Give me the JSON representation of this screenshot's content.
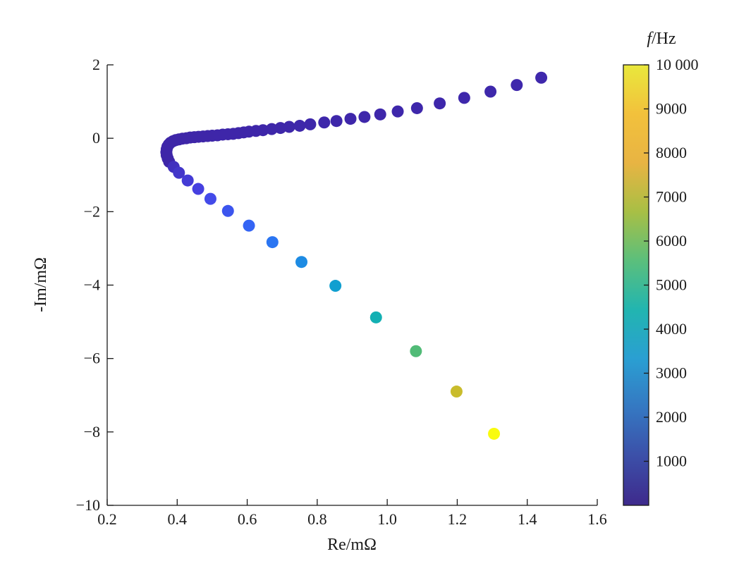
{
  "chart_data": {
    "type": "scatter",
    "title": "",
    "xlabel": "Re/mΩ",
    "ylabel": "-Im/mΩ",
    "xlim": [
      0.2,
      1.6
    ],
    "ylim": [
      -10,
      2
    ],
    "x_ticks": [
      0.2,
      0.4,
      0.6,
      0.8,
      1.0,
      1.2,
      1.4,
      1.6
    ],
    "x_tick_labels": [
      "0.2",
      "0.4",
      "0.6",
      "0.8",
      "1.0",
      "1.2",
      "1.4",
      "1.6"
    ],
    "y_ticks": [
      2,
      0,
      -2,
      -4,
      -6,
      -8,
      -10
    ],
    "y_tick_labels": [
      "2",
      "0",
      "−2",
      "−4",
      "−6",
      "−8",
      "−10"
    ],
    "grid": false,
    "colorbar": {
      "label": "f/Hz",
      "label_italic": "f",
      "label_unit": "/Hz",
      "range": [
        0,
        10000
      ],
      "ticks": [
        1000,
        2000,
        3000,
        4000,
        5000,
        6000,
        7000,
        8000,
        9000,
        10000
      ],
      "tick_labels": [
        "1000",
        "2000",
        "3000",
        "4000",
        "5000",
        "6000",
        "7000",
        "8000",
        "9000",
        "10 000"
      ],
      "colormap": [
        "#3e26a8",
        "#4743e6",
        "#2f6cf8",
        "#1b8fe0",
        "#09a9c5",
        "#1db6a0",
        "#6bbe63",
        "#bdbb2c",
        "#f9c12e",
        "#f9fb0e"
      ],
      "bar_colors": [
        "#3e2a8c",
        "#3c4fa8",
        "#3578c2",
        "#2a9fd2",
        "#22b5b0",
        "#5bbf7c",
        "#a8bf45",
        "#e8b443",
        "#f2c13c",
        "#e9e83c"
      ]
    },
    "series": [
      {
        "points": [
          {
            "x": 1.44,
            "y": 1.65,
            "f": 70
          },
          {
            "x": 1.37,
            "y": 1.45,
            "f": 65
          },
          {
            "x": 1.295,
            "y": 1.27,
            "f": 60
          },
          {
            "x": 1.22,
            "y": 1.1,
            "f": 56
          },
          {
            "x": 1.15,
            "y": 0.95,
            "f": 52
          },
          {
            "x": 1.085,
            "y": 0.82,
            "f": 48
          },
          {
            "x": 1.03,
            "y": 0.73,
            "f": 45
          },
          {
            "x": 0.98,
            "y": 0.65,
            "f": 42
          },
          {
            "x": 0.935,
            "y": 0.58,
            "f": 39
          },
          {
            "x": 0.895,
            "y": 0.53,
            "f": 36
          },
          {
            "x": 0.855,
            "y": 0.47,
            "f": 33
          },
          {
            "x": 0.82,
            "y": 0.43,
            "f": 31
          },
          {
            "x": 0.78,
            "y": 0.38,
            "f": 29
          },
          {
            "x": 0.75,
            "y": 0.34,
            "f": 27
          },
          {
            "x": 0.72,
            "y": 0.31,
            "f": 25
          },
          {
            "x": 0.695,
            "y": 0.28,
            "f": 23
          },
          {
            "x": 0.67,
            "y": 0.25,
            "f": 21
          },
          {
            "x": 0.645,
            "y": 0.22,
            "f": 19
          },
          {
            "x": 0.625,
            "y": 0.2,
            "f": 17
          },
          {
            "x": 0.605,
            "y": 0.18,
            "f": 16
          },
          {
            "x": 0.59,
            "y": 0.16,
            "f": 15
          },
          {
            "x": 0.575,
            "y": 0.14,
            "f": 14
          },
          {
            "x": 0.56,
            "y": 0.12,
            "f": 13
          },
          {
            "x": 0.545,
            "y": 0.11,
            "f": 12
          },
          {
            "x": 0.53,
            "y": 0.1,
            "f": 11
          },
          {
            "x": 0.515,
            "y": 0.08,
            "f": 10
          },
          {
            "x": 0.5,
            "y": 0.07,
            "f": 9
          },
          {
            "x": 0.487,
            "y": 0.06,
            "f": 8
          },
          {
            "x": 0.474,
            "y": 0.05,
            "f": 8
          },
          {
            "x": 0.461,
            "y": 0.04,
            "f": 7
          },
          {
            "x": 0.449,
            "y": 0.03,
            "f": 7
          },
          {
            "x": 0.437,
            "y": 0.02,
            "f": 6
          },
          {
            "x": 0.426,
            "y": 0.0,
            "f": 6
          },
          {
            "x": 0.415,
            "y": -0.01,
            "f": 5
          },
          {
            "x": 0.405,
            "y": -0.03,
            "f": 5
          },
          {
            "x": 0.396,
            "y": -0.05,
            "f": 5
          },
          {
            "x": 0.388,
            "y": -0.08,
            "f": 4
          },
          {
            "x": 0.381,
            "y": -0.12,
            "f": 4
          },
          {
            "x": 0.376,
            "y": -0.17,
            "f": 4
          },
          {
            "x": 0.372,
            "y": -0.23,
            "f": 4
          },
          {
            "x": 0.37,
            "y": -0.3,
            "f": 3
          },
          {
            "x": 0.369,
            "y": -0.38,
            "f": 3
          },
          {
            "x": 0.37,
            "y": -0.46,
            "f": 3
          },
          {
            "x": 0.373,
            "y": -0.55,
            "f": 3
          },
          {
            "x": 0.377,
            "y": -0.64,
            "f": 3
          },
          {
            "x": 0.39,
            "y": -0.78,
            "f": 400
          },
          {
            "x": 0.405,
            "y": -0.94,
            "f": 600
          },
          {
            "x": 0.43,
            "y": -1.15,
            "f": 800
          },
          {
            "x": 0.46,
            "y": -1.38,
            "f": 1000
          },
          {
            "x": 0.495,
            "y": -1.65,
            "f": 1300
          },
          {
            "x": 0.545,
            "y": -1.98,
            "f": 1600
          },
          {
            "x": 0.605,
            "y": -2.38,
            "f": 2000
          },
          {
            "x": 0.672,
            "y": -2.83,
            "f": 2500
          },
          {
            "x": 0.755,
            "y": -3.37,
            "f": 3200
          },
          {
            "x": 0.852,
            "y": -4.02,
            "f": 4000
          },
          {
            "x": 0.968,
            "y": -4.88,
            "f": 5000
          },
          {
            "x": 1.082,
            "y": -5.8,
            "f": 6300
          },
          {
            "x": 1.198,
            "y": -6.9,
            "f": 8000
          },
          {
            "x": 1.305,
            "y": -8.05,
            "f": 10000
          }
        ]
      }
    ]
  }
}
